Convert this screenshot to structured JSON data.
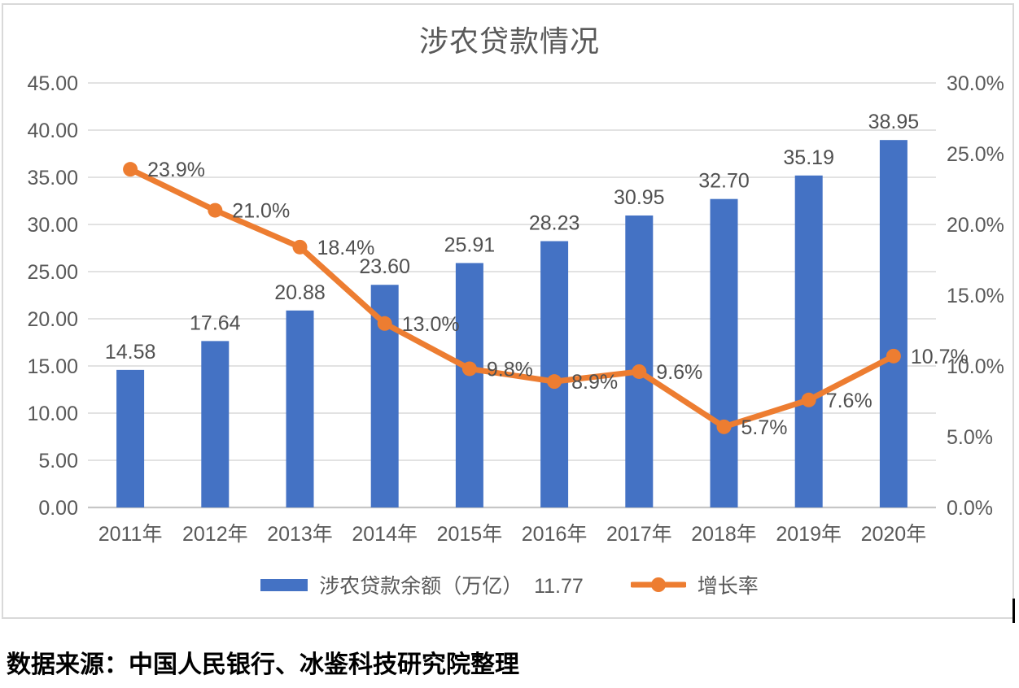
{
  "title": "涉农贷款情况",
  "chart_data": {
    "type": "bar+line combo",
    "title": "涉农贷款情况",
    "categories": [
      "2011年",
      "2012年",
      "2013年",
      "2014年",
      "2015年",
      "2016年",
      "2017年",
      "2018年",
      "2019年",
      "2020年"
    ],
    "series": [
      {
        "name": "涉农贷款余额（万亿）  11.77",
        "type": "bar",
        "axis": "left",
        "color": "#4472C4",
        "values": [
          14.58,
          17.64,
          20.88,
          23.6,
          25.91,
          28.23,
          30.95,
          32.7,
          35.19,
          38.95
        ],
        "data_labels": [
          "14.58",
          "17.64",
          "20.88",
          "23.60",
          "25.91",
          "28.23",
          "30.95",
          "32.70",
          "35.19",
          "38.95"
        ]
      },
      {
        "name": "增长率",
        "type": "line",
        "axis": "right",
        "color": "#ED7D31",
        "values": [
          23.9,
          21.0,
          18.4,
          13.0,
          9.8,
          8.9,
          9.6,
          5.7,
          7.6,
          10.7
        ],
        "data_labels": [
          "23.9%",
          "21.0%",
          "18.4%",
          "13.0%",
          "9.8%",
          "8.9%",
          "9.6%",
          "5.7%",
          "7.6%",
          "10.7%"
        ]
      }
    ],
    "left_axis": {
      "min": 0,
      "max": 45,
      "step": 5,
      "ticks": [
        "45.00",
        "40.00",
        "35.00",
        "30.00",
        "25.00",
        "20.00",
        "15.00",
        "10.00",
        "5.00",
        "0.00"
      ]
    },
    "right_axis": {
      "min": 0,
      "max": 30,
      "step": 5,
      "ticks": [
        "30.0%",
        "25.0%",
        "20.0%",
        "15.0%",
        "10.0%",
        "5.0%",
        "0.0%"
      ]
    },
    "grid": true,
    "legend_position": "bottom"
  },
  "legend": {
    "items": [
      {
        "label": "涉农贷款余额（万亿）  11.77",
        "swatch": "bar",
        "color": "#4472C4"
      },
      {
        "label": "增长率",
        "swatch": "line-marker",
        "color": "#ED7D31"
      }
    ]
  },
  "source_note": "数据来源：中国人民银行、冰鉴科技研究院整理",
  "colors": {
    "bar": "#4472C4",
    "line": "#ED7D31",
    "gridline": "#D9D9D9",
    "axis_line": "#C6C6C6",
    "axis_text": "#595959",
    "chart_border": "#D9D9D9"
  }
}
